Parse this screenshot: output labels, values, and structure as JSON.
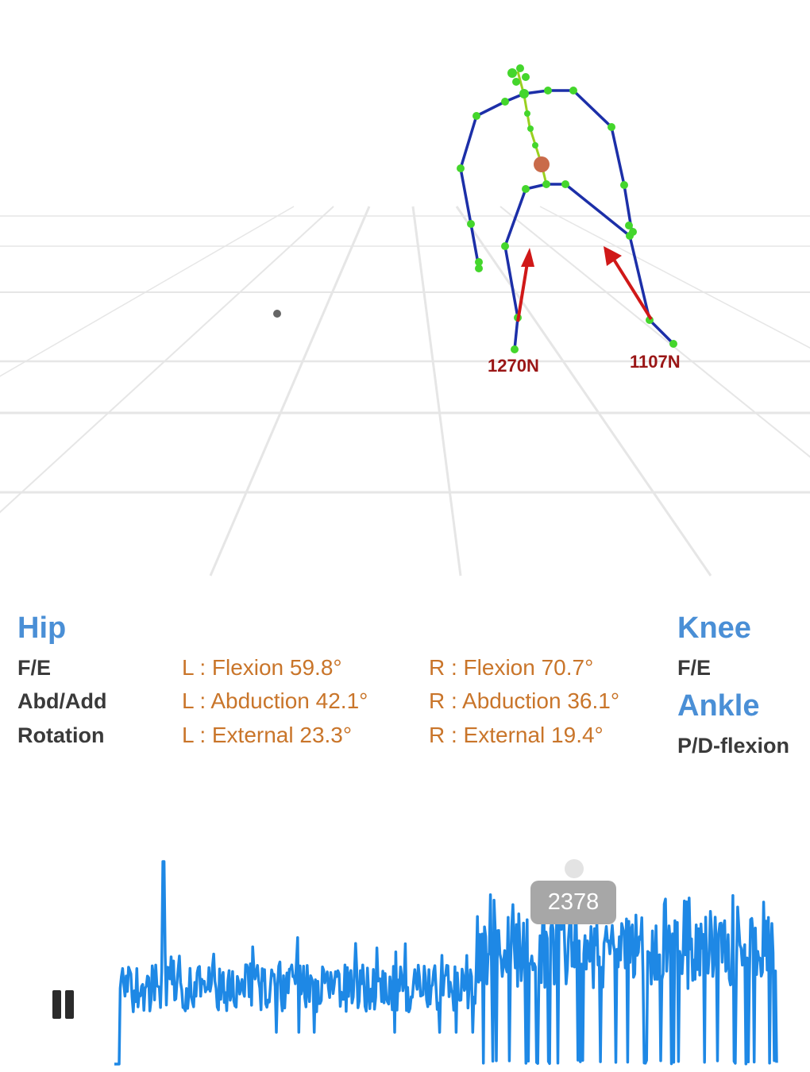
{
  "forces": {
    "left": "1270N",
    "right": "1107N"
  },
  "hip": {
    "title": "Hip",
    "rows": [
      {
        "label": "F/E",
        "left": "L : Flexion 59.8°",
        "right": "R : Flexion 70.7°"
      },
      {
        "label": "Abd/Add",
        "left": "L : Abduction 42.1°",
        "right": "R : Abduction 36.1°"
      },
      {
        "label": "Rotation",
        "left": "L : External 23.3°",
        "right": "R : External 19.4°"
      }
    ]
  },
  "knee": {
    "title": "Knee",
    "rows": [
      {
        "label": "F/E"
      }
    ]
  },
  "ankle": {
    "title": "Ankle",
    "rows": [
      {
        "label": "P/D-flexion"
      }
    ]
  },
  "playback": {
    "current_frame": "2378",
    "state": "playing",
    "pause_icon": "pause-icon",
    "waveform_color": "#1e88e5"
  },
  "colors": {
    "section_title": "#4a8fd6",
    "value_text": "#c9752a",
    "skeleton_bone": "#1c2fa8",
    "skeleton_joint": "#44d62c",
    "force_vector": "#d01818",
    "force_label": "#9a1616"
  }
}
